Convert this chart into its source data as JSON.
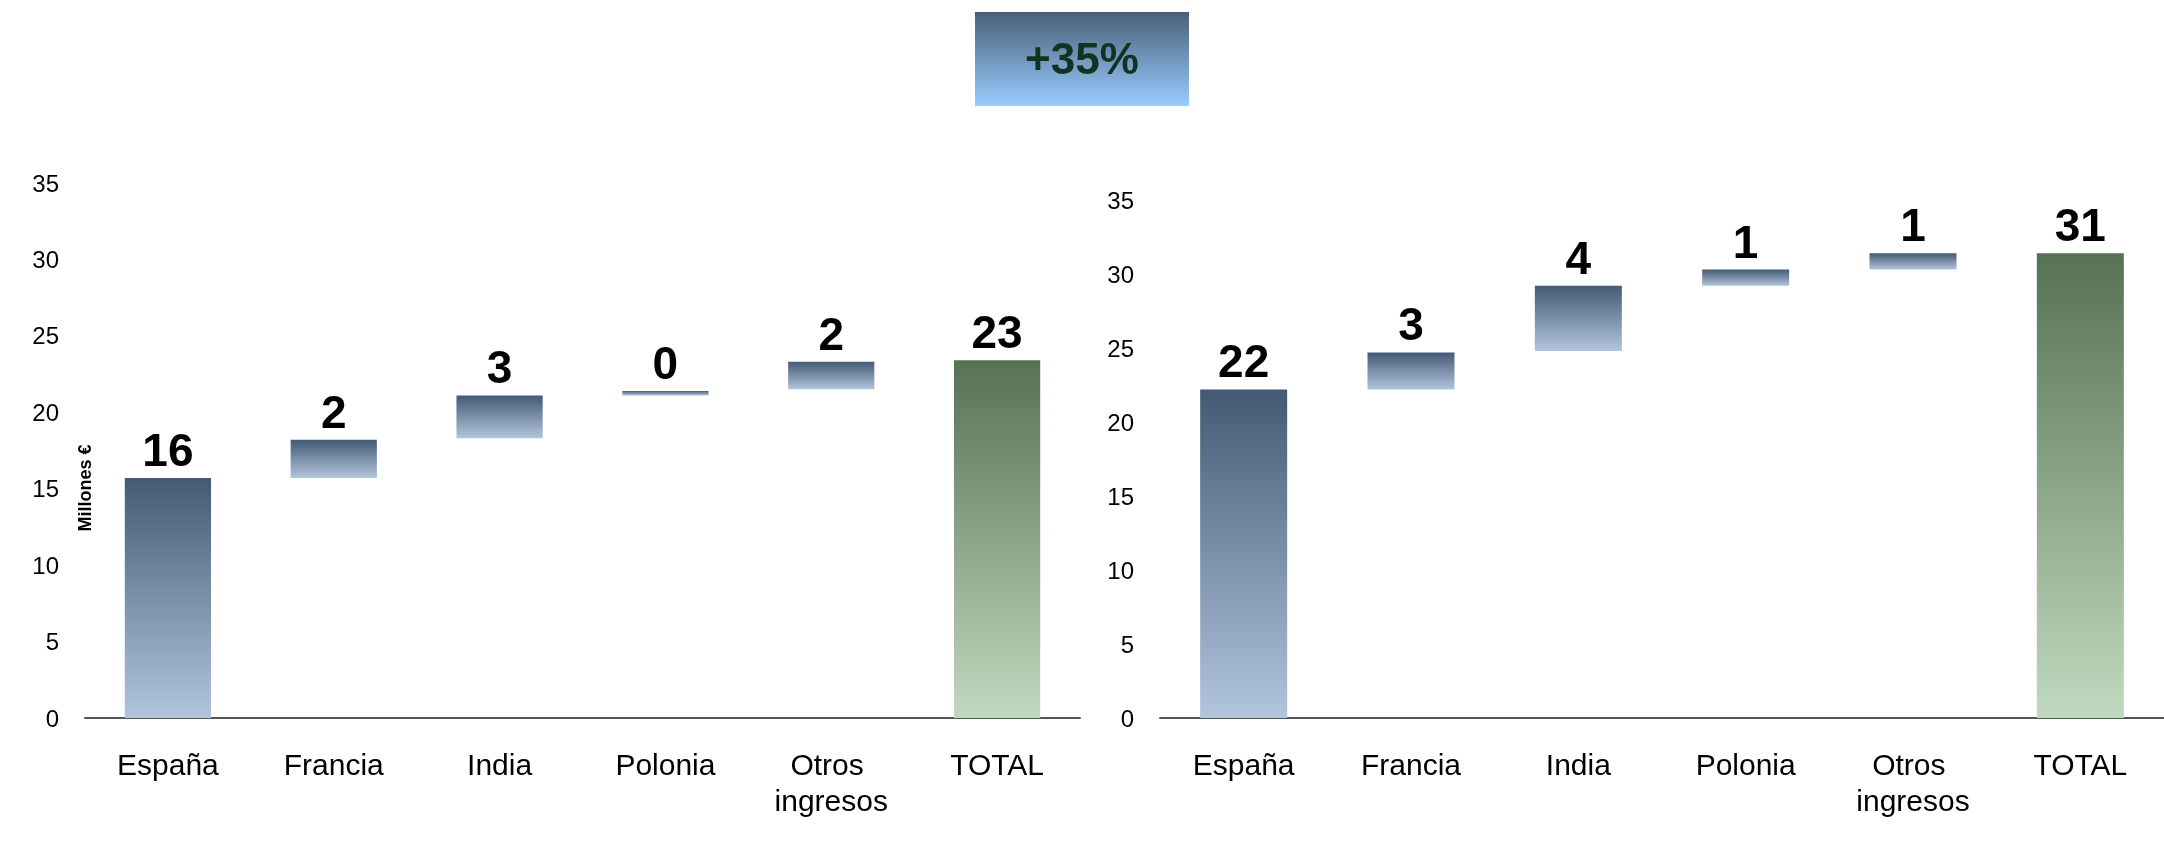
{
  "chart_data": [
    {
      "type": "bar",
      "ylabel": "Millones €",
      "annotations": [
        "+35%"
      ],
      "categories": [
        "España",
        "Francia",
        "India",
        "Polonia",
        "Otros ingresos",
        "TOTAL"
      ],
      "base": [
        0,
        15.7,
        18.3,
        21.1,
        21.5,
        0
      ],
      "values": [
        15.7,
        2.5,
        2.8,
        0.3,
        1.8,
        23.4
      ],
      "value_labels": [
        "16",
        "2",
        "3",
        "0",
        "2",
        "23"
      ],
      "colors": [
        "#7196c2",
        "#7196c2",
        "#7196c2",
        "#7196c2",
        "#7196c2",
        "#8fbc8a"
      ],
      "ylim": [
        0,
        35
      ],
      "yticks": [
        0,
        5,
        10,
        15,
        20,
        25,
        30,
        35
      ]
    },
    {
      "type": "bar",
      "categories": [
        "España",
        "Francia",
        "India",
        "Polonia",
        "Otros ingresos",
        "TOTAL"
      ],
      "base": [
        0,
        22.2,
        24.8,
        29.2,
        30.3,
        0
      ],
      "values": [
        22.2,
        2.5,
        4.4,
        1.1,
        1.1,
        31.4
      ],
      "value_labels": [
        "22",
        "3",
        "4",
        "1",
        "1",
        "31"
      ],
      "colors": [
        "#7196c2",
        "#7196c2",
        "#7196c2",
        "#7196c2",
        "#7196c2",
        "#8fbc8a"
      ],
      "ylim": [
        0,
        35
      ],
      "yticks": [
        0,
        5,
        10,
        15,
        20,
        25,
        30,
        35
      ]
    }
  ]
}
